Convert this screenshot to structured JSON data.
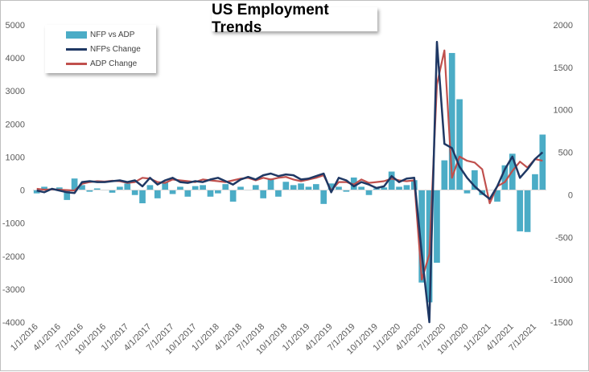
{
  "chart_data": {
    "type": "bar+line",
    "title": "US Employment Trends",
    "legend": [
      "NFP vs ADP",
      "NFPs Change",
      "ADP Change"
    ],
    "legend_position": "top-left",
    "colors": {
      "bars": "#4bacc6",
      "nfp_line": "#1f3864",
      "adp_line": "#c0504d",
      "axis_text": "#595959"
    },
    "y_left": {
      "min": -4000,
      "max": 5000,
      "ticks": [
        "-4000",
        "-3000",
        "-2000",
        "-1000",
        "0",
        "1000",
        "2000",
        "3000",
        "4000",
        "5000"
      ]
    },
    "y_right": {
      "min": -1500,
      "max": 2000,
      "ticks": [
        "-1500",
        "-1000",
        "-500",
        "0",
        "500",
        "1000",
        "1500",
        "2000"
      ]
    },
    "x_tick_labels": [
      "1/1/2016",
      "4/1/2016",
      "7/1/2016",
      "10/1/2016",
      "1/1/2017",
      "4/1/2017",
      "7/1/2017",
      "10/1/2017",
      "1/1/2018",
      "4/1/2018",
      "7/1/2018",
      "10/1/2018",
      "1/1/2019",
      "4/1/2019",
      "7/1/2019",
      "10/1/2019",
      "1/1/2020",
      "4/1/2020",
      "7/1/2020",
      "10/1/2020",
      "1/1/2021",
      "4/1/2021",
      "7/1/2021"
    ],
    "grid": false,
    "series": [
      {
        "name": "NFP vs ADP",
        "axis": "left",
        "type": "bar",
        "values": [
          -100,
          100,
          50,
          80,
          -300,
          350,
          150,
          -50,
          50,
          0,
          -80,
          100,
          200,
          -150,
          -400,
          150,
          -250,
          250,
          -120,
          100,
          -200,
          120,
          150,
          -200,
          -100,
          180,
          -350,
          100,
          0,
          150,
          -250,
          350,
          -200,
          250,
          150,
          200,
          100,
          180,
          -420,
          200,
          100,
          -50,
          380,
          100,
          -150,
          50,
          80,
          560,
          100,
          150,
          300,
          -2800,
          -3400,
          -2200,
          900,
          4150,
          2750,
          -100,
          600,
          -150,
          0,
          -350,
          750,
          1100,
          -1250,
          -1270,
          480,
          1680
        ]
      },
      {
        "name": "NFPs Change",
        "axis": "right",
        "type": "line",
        "values": [
          50,
          30,
          70,
          50,
          30,
          20,
          150,
          160,
          150,
          150,
          160,
          170,
          150,
          170,
          100,
          200,
          120,
          170,
          200,
          150,
          140,
          160,
          150,
          180,
          200,
          160,
          120,
          180,
          210,
          180,
          230,
          250,
          220,
          240,
          230,
          180,
          190,
          220,
          250,
          30,
          200,
          170,
          100,
          150,
          120,
          80,
          100,
          220,
          150,
          190,
          200,
          -700,
          -1500,
          1800,
          600,
          550,
          330,
          200,
          100,
          20,
          -50,
          100,
          300,
          450,
          200,
          300,
          420,
          500
        ]
      },
      {
        "name": "ADP Change",
        "axis": "right",
        "type": "line",
        "values": [
          70,
          60,
          65,
          60,
          55,
          50,
          130,
          150,
          160,
          155,
          165,
          160,
          140,
          150,
          200,
          190,
          150,
          140,
          180,
          170,
          160,
          150,
          180,
          170,
          160,
          150,
          170,
          190,
          200,
          170,
          200,
          180,
          200,
          210,
          180,
          160,
          180,
          200,
          230,
          50,
          150,
          150,
          120,
          180,
          140,
          150,
          160,
          190,
          170,
          160,
          170,
          -1000,
          -700,
          1300,
          1700,
          200,
          450,
          400,
          380,
          300,
          -100,
          100,
          150,
          280,
          390,
          320,
          420,
          400
        ]
      }
    ]
  }
}
